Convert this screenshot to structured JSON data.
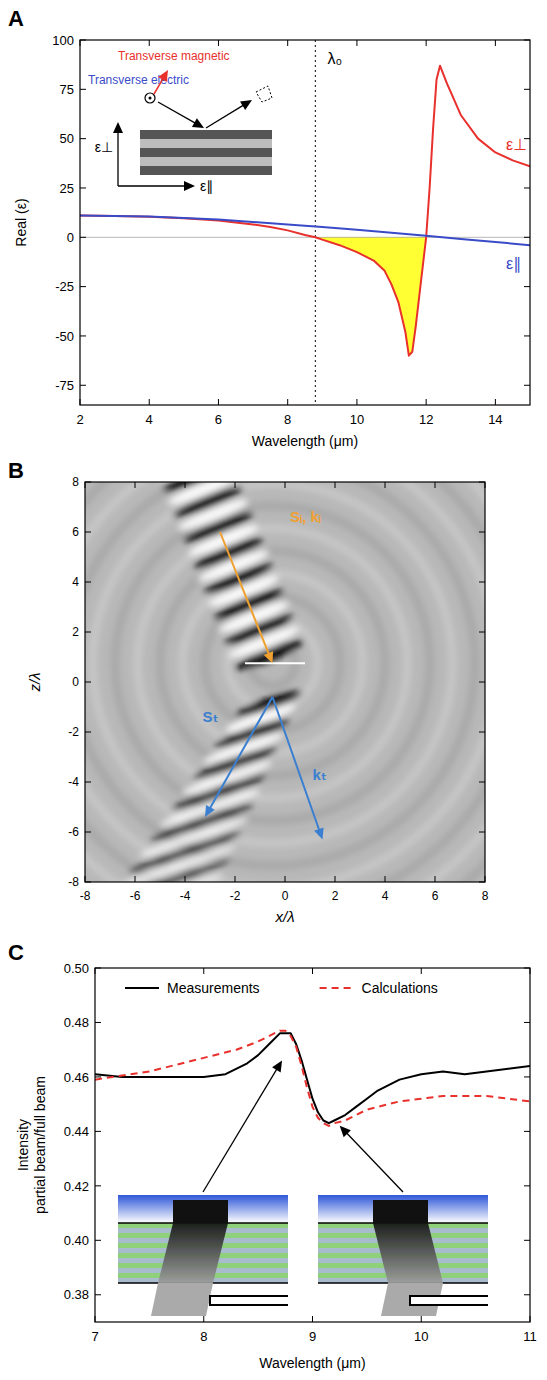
{
  "chart_data": [
    {
      "type": "line",
      "panel": "A",
      "xlabel": "Wavelength (μm)",
      "ylabel": "Real (ε)",
      "xlim": [
        2,
        15
      ],
      "ylim": [
        -85,
        100
      ],
      "xticks": [
        2,
        4,
        6,
        8,
        10,
        12,
        14
      ],
      "yticks": [
        -75,
        -50,
        -25,
        0,
        25,
        50,
        75,
        100
      ],
      "series": [
        {
          "name": "ε⊥",
          "color": "#e8302c",
          "fill_color": "#ffff33",
          "line_style": "solid",
          "x": [
            2,
            3,
            4,
            5,
            6,
            7,
            7.5,
            8,
            8.5,
            8.8,
            9,
            9.5,
            10,
            10.5,
            10.8,
            11,
            11.2,
            11.4,
            11.5,
            11.6,
            11.7,
            11.8,
            11.9,
            12,
            12.1,
            12.2,
            12.3,
            12.4,
            12.6,
            13,
            13.5,
            14,
            14.5,
            15
          ],
          "values": [
            11,
            10.8,
            10.4,
            9.7,
            8.5,
            6.5,
            5.2,
            3.5,
            1.2,
            0,
            -1.2,
            -4,
            -7.5,
            -12,
            -17,
            -24,
            -33,
            -48,
            -60,
            -58,
            -45,
            -30,
            -15,
            0,
            25,
            55,
            80,
            87,
            78,
            62,
            50,
            43,
            39,
            36
          ]
        },
        {
          "name": "ε∥",
          "color": "#3a4bc8",
          "line_style": "solid",
          "x": [
            2,
            4,
            6,
            8,
            9,
            10,
            11,
            12,
            13,
            14,
            15
          ],
          "values": [
            11,
            10.5,
            9,
            6.5,
            5.2,
            3.8,
            2.3,
            0.8,
            -0.8,
            -2.4,
            -4
          ]
        }
      ],
      "annotations": [
        {
          "text": "λ₀",
          "x": 8.8,
          "line_style": "dotted"
        }
      ],
      "inset": {
        "labels": [
          {
            "text": "Transverse magnetic",
            "color": "#e8302c"
          },
          {
            "text": "Transverse electric",
            "color": "#3a4bc8"
          },
          {
            "text": "ε⊥",
            "color": "#000000"
          },
          {
            "text": "ε∥",
            "color": "#000000"
          }
        ]
      }
    },
    {
      "type": "field",
      "panel": "B",
      "xlabel": "x/λ",
      "ylabel": "z/λ",
      "xlim": [
        -8,
        8
      ],
      "ylim": [
        -8,
        8
      ],
      "xticks": [
        -8,
        -6,
        -4,
        -2,
        0,
        2,
        4,
        6,
        8
      ],
      "yticks": [
        -8,
        -6,
        -4,
        -2,
        0,
        2,
        4,
        6,
        8
      ],
      "arrows": [
        {
          "from": [
            -2.6,
            6.0
          ],
          "to": [
            -0.5,
            0.75
          ],
          "color": "#f0a030"
        },
        {
          "from": [
            -0.5,
            -0.6
          ],
          "to": [
            -3.2,
            -5.4
          ],
          "color": "#3a7fd0"
        },
        {
          "from": [
            -0.5,
            -0.6
          ],
          "to": [
            1.5,
            -6.3
          ],
          "color": "#3a7fd0"
        }
      ],
      "lines": [
        {
          "from": [
            -1.6,
            0.75
          ],
          "to": [
            0.8,
            0.75
          ],
          "color": "#ffffff"
        }
      ],
      "annotations": [
        {
          "text": "Sᵢ, kᵢ",
          "x": 0.2,
          "y": 6.4,
          "color": "#f0a030"
        },
        {
          "text": "Sₜ",
          "x": -3.3,
          "y": -1.6,
          "color": "#3a7fd0"
        },
        {
          "text": "kₜ",
          "x": 1.1,
          "y": -3.9,
          "color": "#3a7fd0"
        }
      ]
    },
    {
      "type": "line",
      "panel": "C",
      "xlabel": "Wavelength (μm)",
      "ylabel": [
        "Intensity",
        "partial beam/full beam"
      ],
      "xlim": [
        7,
        11
      ],
      "ylim": [
        0.37,
        0.5
      ],
      "xticks": [
        7,
        8,
        9,
        10,
        11
      ],
      "yticks": [
        0.38,
        {
          "value": 0.4,
          "label": "0.40"
        },
        0.42,
        0.44,
        0.46,
        0.48,
        {
          "value": 0.5,
          "label": "0.50"
        }
      ],
      "legend": "top",
      "series": [
        {
          "name": "Measurements",
          "color": "#000000",
          "line_style": "solid",
          "x": [
            7,
            7.25,
            7.5,
            7.75,
            8,
            8.2,
            8.4,
            8.5,
            8.6,
            8.7,
            8.75,
            8.8,
            8.85,
            8.9,
            8.95,
            9,
            9.05,
            9.1,
            9.15,
            9.2,
            9.3,
            9.4,
            9.5,
            9.6,
            9.8,
            10,
            10.2,
            10.4,
            10.6,
            10.8,
            11
          ],
          "values": [
            0.461,
            0.46,
            0.46,
            0.46,
            0.46,
            0.461,
            0.465,
            0.468,
            0.472,
            0.476,
            0.476,
            0.476,
            0.472,
            0.466,
            0.459,
            0.452,
            0.447,
            0.444,
            0.443,
            0.444,
            0.446,
            0.449,
            0.452,
            0.455,
            0.459,
            0.461,
            0.462,
            0.461,
            0.462,
            0.463,
            0.464
          ]
        },
        {
          "name": "Calculations",
          "color": "#e8302c",
          "line_style": "dashed",
          "x": [
            7,
            7.5,
            8,
            8.3,
            8.5,
            8.6,
            8.7,
            8.75,
            8.8,
            8.85,
            8.9,
            8.95,
            9,
            9.05,
            9.1,
            9.15,
            9.2,
            9.3,
            9.4,
            9.5,
            9.6,
            9.8,
            10,
            10.2,
            10.4,
            10.5,
            10.6,
            10.8,
            11
          ],
          "values": [
            0.459,
            0.462,
            0.467,
            0.47,
            0.473,
            0.475,
            0.477,
            0.477,
            0.475,
            0.471,
            0.464,
            0.456,
            0.449,
            0.445,
            0.443,
            0.442,
            0.443,
            0.444,
            0.446,
            0.448,
            0.449,
            0.451,
            0.452,
            0.453,
            0.453,
            0.453,
            0.453,
            0.452,
            0.451
          ]
        }
      ],
      "pointers": [
        [
          8.72,
          0.469
        ],
        [
          9.25,
          0.445
        ]
      ]
    }
  ]
}
